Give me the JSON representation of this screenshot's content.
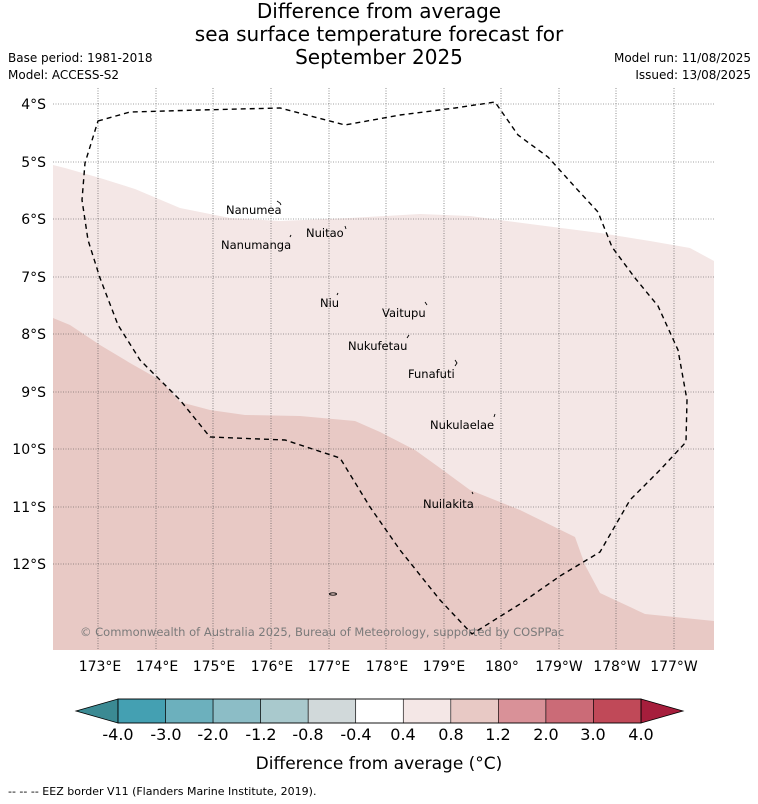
{
  "header": {
    "title_lines": [
      "Difference from average",
      "sea surface temperature forecast for",
      "September 2025"
    ],
    "base_period": "Base period: 1981-2018",
    "model": "Model: ACCESS-S2",
    "model_run": "Model run: 11/08/2025",
    "issued": "Issued: 13/08/2025"
  },
  "map": {
    "lat_ticks": [
      {
        "label": "4°S",
        "value": -4
      },
      {
        "label": "5°S",
        "value": -5
      },
      {
        "label": "6°S",
        "value": -6
      },
      {
        "label": "7°S",
        "value": -7
      },
      {
        "label": "8°S",
        "value": -8
      },
      {
        "label": "9°S",
        "value": -9
      },
      {
        "label": "10°S",
        "value": -10
      },
      {
        "label": "11°S",
        "value": -11
      },
      {
        "label": "12°S",
        "value": -12
      }
    ],
    "lon_ticks": [
      {
        "label": "173°E",
        "value": 173
      },
      {
        "label": "174°E",
        "value": 174
      },
      {
        "label": "175°E",
        "value": 175
      },
      {
        "label": "176°E",
        "value": 176
      },
      {
        "label": "177°E",
        "value": 177
      },
      {
        "label": "178°E",
        "value": 178
      },
      {
        "label": "179°E",
        "value": 179
      },
      {
        "label": "180°",
        "value": 180
      },
      {
        "label": "179°W",
        "value": 181
      },
      {
        "label": "178°W",
        "value": 182
      },
      {
        "label": "177°W",
        "value": 183
      }
    ],
    "islands": [
      {
        "name": "Nanumea",
        "id": "nanumea"
      },
      {
        "name": "Nuitao",
        "id": "nuitao"
      },
      {
        "name": "Nanumanga",
        "id": "nanumanga"
      },
      {
        "name": "Niu",
        "id": "niu"
      },
      {
        "name": "Vaitupu",
        "id": "vaitupu"
      },
      {
        "name": "Nukufetau",
        "id": "nukufetau"
      },
      {
        "name": "Funafuti",
        "id": "funafuti"
      },
      {
        "name": "Nukulaelae",
        "id": "nukulaelae"
      },
      {
        "name": "Nuilakita",
        "id": "nuilakita"
      }
    ],
    "anomaly_zones": [
      {
        "range": "0.4 to 0.8",
        "color": "#f4e7e6"
      },
      {
        "range": "0.8 to 1.2",
        "color": "#e8c9c5"
      }
    ],
    "copyright": "© Commonwealth of Australia 2025, Bureau of Meteorology, supported by COSPPac"
  },
  "colorbar": {
    "ticks": [
      "-4.0",
      "-3.0",
      "-2.0",
      "-1.2",
      "-0.8",
      "-0.4",
      "0.4",
      "0.8",
      "1.2",
      "2.0",
      "3.0",
      "4.0"
    ],
    "colors": [
      "#44a0b2",
      "#6cb0bd",
      "#8cbdc6",
      "#a9c9cd",
      "#d1d9da",
      "#ffffff",
      "#f4e7e6",
      "#e8c9c5",
      "#d99198",
      "#cb6b77",
      "#c04958"
    ],
    "under_color": "#3b8a93",
    "over_color": "#a61e3c",
    "label": "Difference from average (°C)"
  },
  "footer": {
    "legend_text": "-- -- -- EEZ border V11 (Flanders Marine Institute, 2019)."
  }
}
